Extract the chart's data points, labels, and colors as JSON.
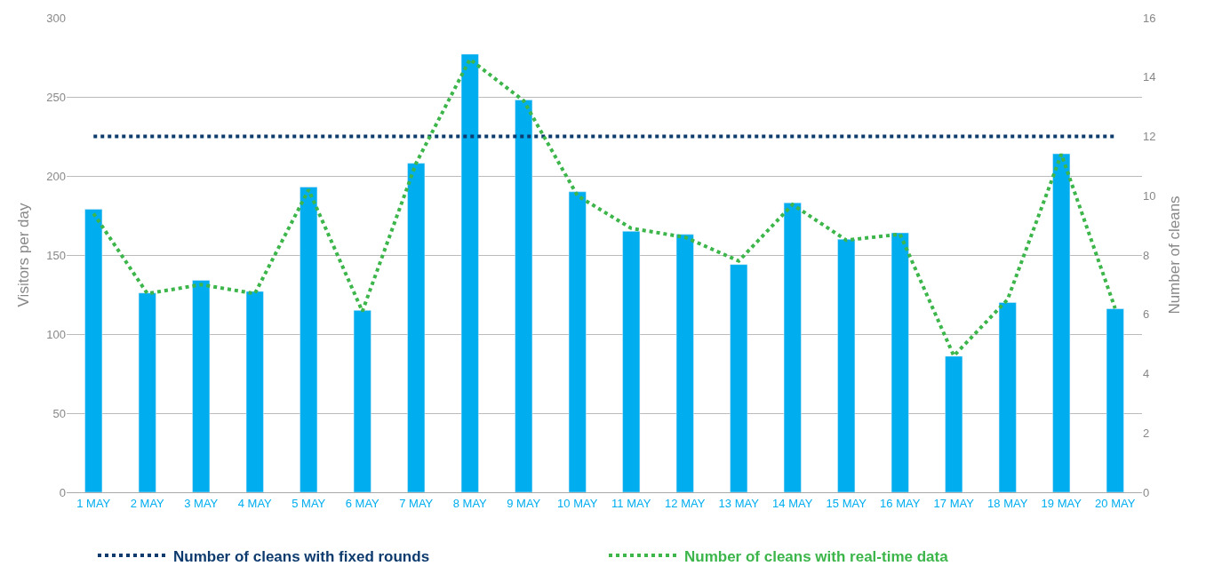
{
  "chart_data": {
    "type": "bar",
    "ylabel": "Visitors per day",
    "y2label": "Number of cleans",
    "categories": [
      "1 MAY",
      "2 MAY",
      "3 MAY",
      "4 MAY",
      "5 MAY",
      "6 MAY",
      "7 MAY",
      "8 MAY",
      "9 MAY",
      "10 MAY",
      "11 MAY",
      "12 MAY",
      "13 MAY",
      "14 MAY",
      "15 MAY",
      "16 MAY",
      "17 MAY",
      "18 MAY",
      "19 MAY",
      "20 MAY"
    ],
    "series": [
      {
        "color": "#00aeef",
        "values": [
          179,
          126,
          134,
          127,
          193,
          115,
          208,
          277,
          248,
          190,
          165,
          163,
          144,
          183,
          160,
          164,
          86,
          120,
          214,
          116
        ]
      },
      {
        "type": "line",
        "name": "Number of cleans with fixed rounds",
        "color": "#0d3b6e",
        "axis": "y2",
        "line_style": "dotted",
        "values": [
          12,
          12,
          12,
          12,
          12,
          12,
          12,
          12,
          12,
          12,
          12,
          12,
          12,
          12,
          12,
          12,
          12,
          12,
          12,
          12
        ]
      },
      {
        "type": "line",
        "name": "Number of cleans with real-time data",
        "color": "#3cb54a",
        "axis": "y2",
        "line_style": "dotted",
        "values": [
          9.4,
          6.7,
          7.0,
          6.7,
          10.2,
          6.1,
          11.1,
          14.6,
          13.2,
          10.0,
          8.9,
          8.6,
          7.8,
          9.7,
          8.5,
          8.7,
          4.6,
          6.5,
          11.4,
          6.2
        ]
      }
    ],
    "ylim": [
      0,
      300
    ],
    "yticks": [
      0,
      50,
      100,
      150,
      200,
      250,
      300
    ],
    "y2lim": [
      0,
      16
    ],
    "y2ticks": [
      0,
      2,
      4,
      6,
      8,
      10,
      12,
      14,
      16
    ],
    "grid": "y",
    "legend": "bottom"
  }
}
